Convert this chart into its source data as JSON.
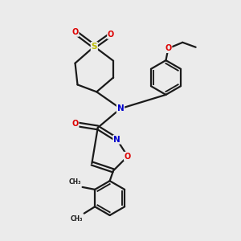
{
  "bg_color": "#ebebeb",
  "bond_color": "#1a1a1a",
  "bond_width": 1.6,
  "atom_colors": {
    "N": "#0000cc",
    "O": "#dd0000",
    "S": "#bbbb00",
    "C": "#1a1a1a"
  },
  "figsize": [
    3.0,
    3.0
  ],
  "dpi": 100
}
